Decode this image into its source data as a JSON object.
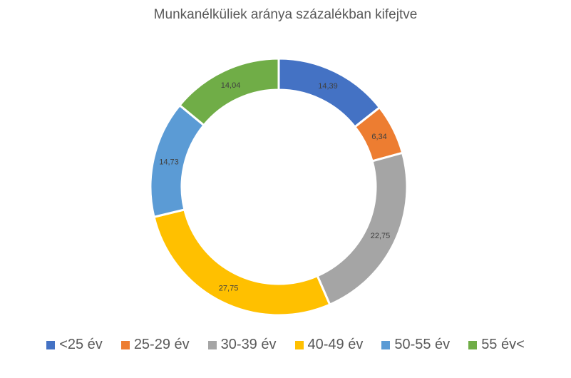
{
  "chart_data": {
    "type": "pie",
    "title": "Munkanélküliek aránya százalékban kifejtve",
    "categories": [
      "<25 év",
      "25-29 év",
      "30-39 év",
      "40-49 év",
      "50-55 év",
      "55 év<"
    ],
    "values": [
      14.39,
      6.34,
      22.75,
      27.75,
      14.73,
      14.04
    ],
    "data_labels": [
      "14,39",
      "6,34",
      "22,75",
      "27,75",
      "14,73",
      "14,04"
    ],
    "colors": [
      "#4472C4",
      "#ED7D31",
      "#A5A5A5",
      "#FFC000",
      "#5B9BD5",
      "#70AD47"
    ],
    "legend": "bottom"
  }
}
